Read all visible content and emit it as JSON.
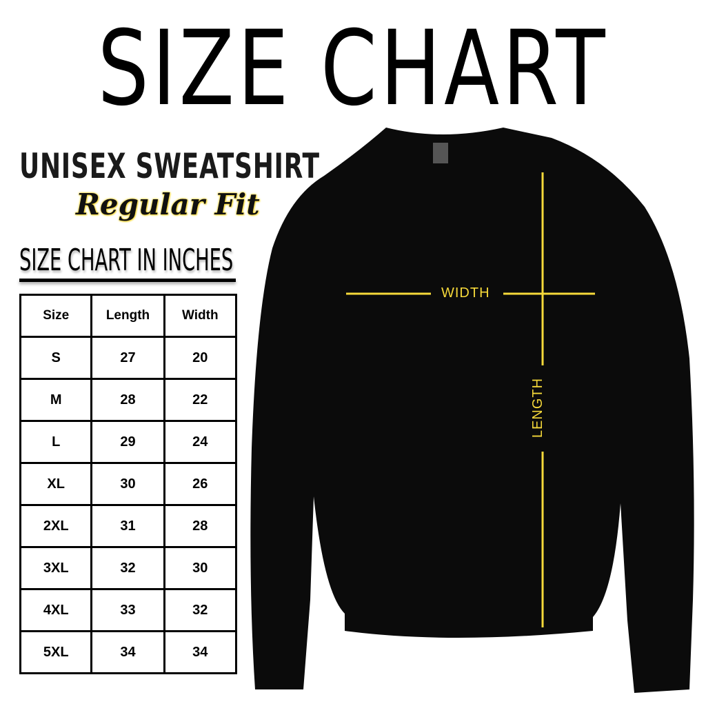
{
  "title": "SIZE CHART",
  "product": "UNISEX SWEATSHIRT",
  "fit": "Regular Fit",
  "chart_heading": "SIZE CHART IN INCHES",
  "table": {
    "headers": [
      "Size",
      "Length",
      "Width"
    ],
    "rows": [
      [
        "S",
        "27",
        "20"
      ],
      [
        "M",
        "28",
        "22"
      ],
      [
        "L",
        "29",
        "24"
      ],
      [
        "XL",
        "30",
        "26"
      ],
      [
        "2XL",
        "31",
        "28"
      ],
      [
        "3XL",
        "32",
        "30"
      ],
      [
        "4XL",
        "33",
        "32"
      ],
      [
        "5XL",
        "34",
        "34"
      ]
    ]
  },
  "diagram": {
    "width_label": "WIDTH",
    "length_label": "LENGTH",
    "line_color": "#f6d93a",
    "garment_color": "#0b0b0b"
  }
}
